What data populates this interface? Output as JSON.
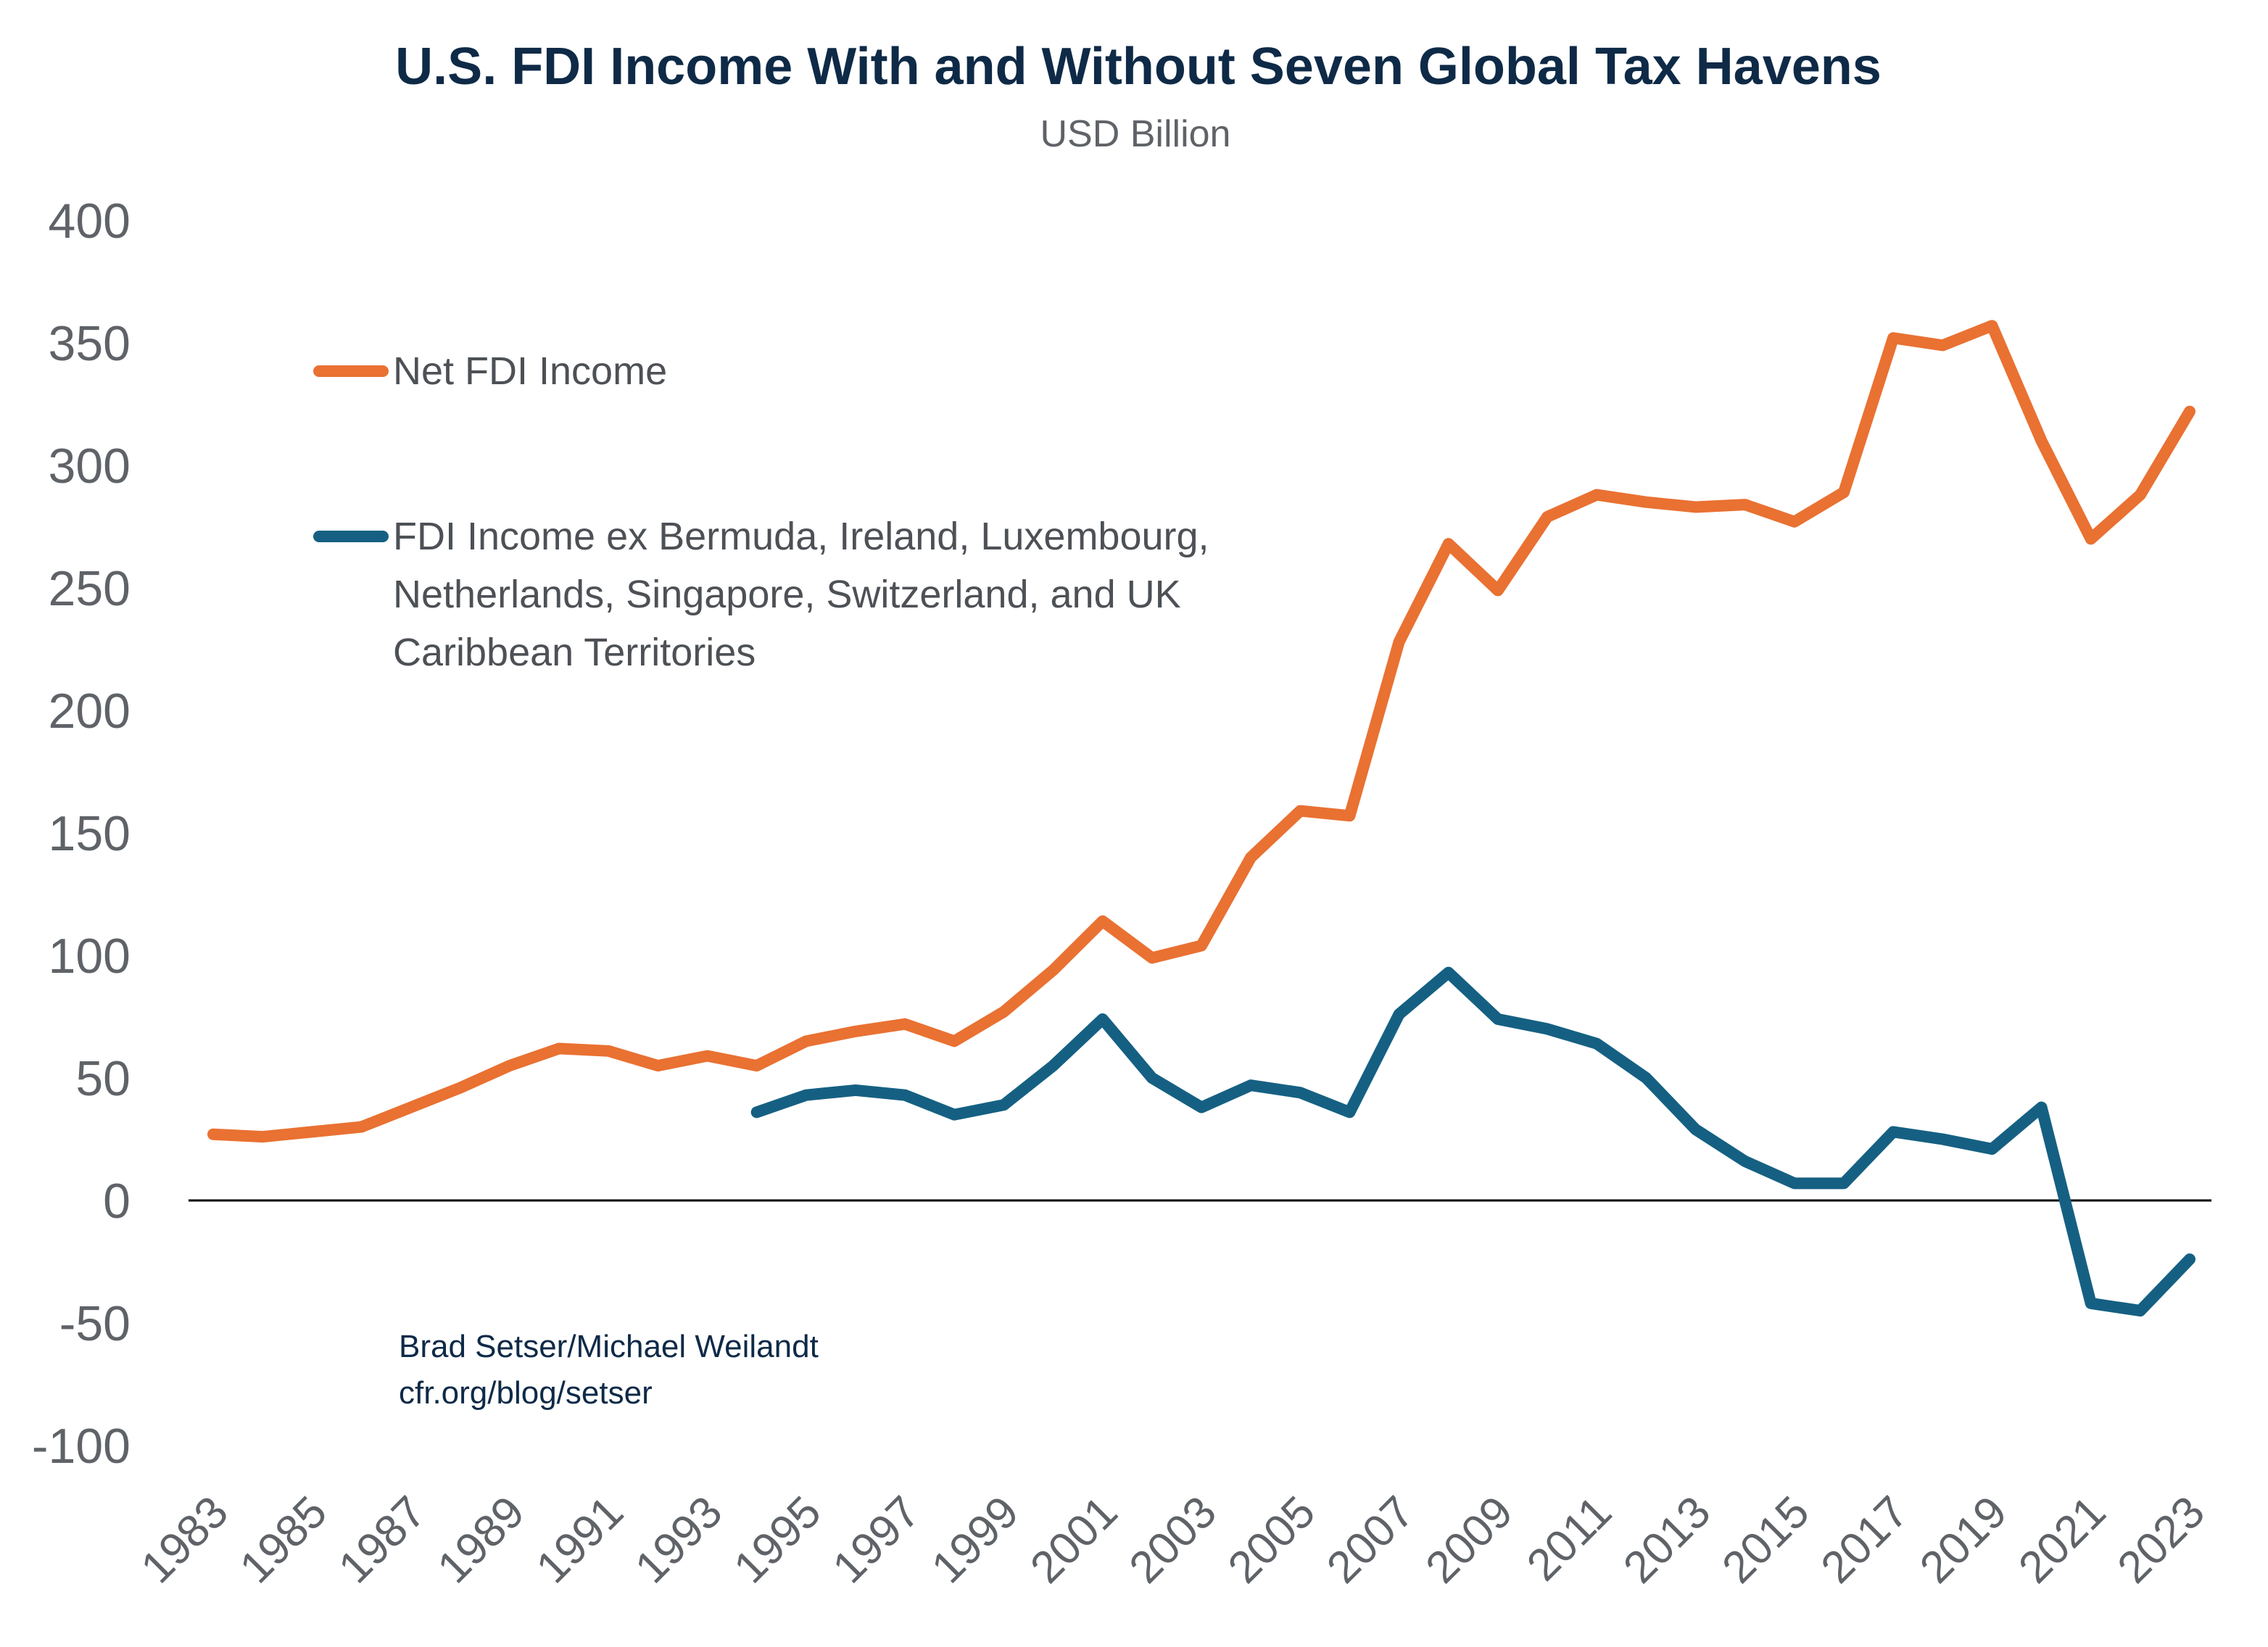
{
  "chart_data": {
    "type": "line",
    "title": "U.S. FDI Income With and Without Seven Global Tax Havens",
    "subtitle": "USD Billion",
    "xlabel": "",
    "ylabel": "",
    "ylim": [
      -100,
      400
    ],
    "yticks": [
      "400",
      "350",
      "300",
      "250",
      "200",
      "150",
      "100",
      "50",
      "0",
      "-50",
      "-100"
    ],
    "xticks": [
      "1983",
      "1985",
      "1987",
      "1989",
      "1991",
      "1993",
      "1995",
      "1997",
      "1999",
      "2001",
      "2003",
      "2005",
      "2007",
      "2009",
      "2011",
      "2013",
      "2015",
      "2017",
      "2019",
      "2021",
      "2023"
    ],
    "grid": false,
    "legend_placement": "top-left",
    "x": [
      1983,
      1984,
      1985,
      1986,
      1987,
      1988,
      1989,
      1990,
      1991,
      1992,
      1993,
      1994,
      1995,
      1996,
      1997,
      1998,
      1999,
      2000,
      2001,
      2002,
      2003,
      2004,
      2005,
      2006,
      2007,
      2008,
      2009,
      2010,
      2011,
      2012,
      2013,
      2014,
      2015,
      2016,
      2017,
      2018,
      2019,
      2020,
      2021,
      2022,
      2023
    ],
    "series": [
      {
        "name": "Net FDI Income",
        "color": "#e97132",
        "values": [
          27,
          26,
          28,
          30,
          38,
          46,
          55,
          62,
          61,
          55,
          59,
          55,
          65,
          69,
          72,
          65,
          77,
          94,
          114,
          99,
          104,
          140,
          159,
          157,
          228,
          268,
          249,
          279,
          288,
          285,
          283,
          284,
          277,
          289,
          352,
          349,
          357,
          310,
          270,
          288,
          322
        ]
      },
      {
        "name": "FDI Income ex Bermuda, Ireland, Luxembourg, Netherlands, Singapore, Switzerland, and UK Caribbean Territories",
        "legend_lines": [
          "FDI Income ex Bermuda, Ireland, Luxembourg,",
          "Netherlands, Singapore, Switzerland, and UK",
          "Caribbean Territories"
        ],
        "color": "#156082",
        "values": [
          null,
          null,
          null,
          null,
          null,
          null,
          null,
          null,
          null,
          null,
          null,
          36,
          43,
          45,
          43,
          35,
          39,
          55,
          74,
          50,
          38,
          47,
          44,
          36,
          76,
          93,
          74,
          70,
          64,
          50,
          29,
          16,
          7,
          7,
          28,
          25,
          21,
          38,
          -42,
          -45,
          -24
        ]
      }
    ],
    "annotations": [
      "Brad Setser/Michael Weilandt",
      "cfr.org/blog/setser"
    ]
  }
}
